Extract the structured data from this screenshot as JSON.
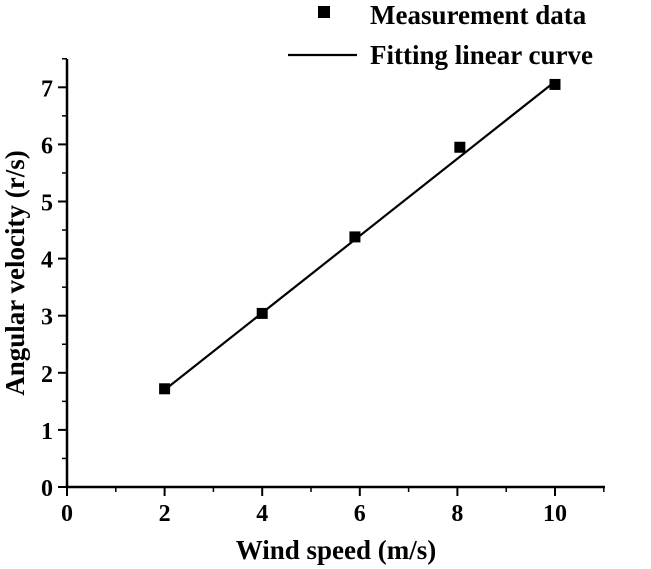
{
  "chart_data": {
    "type": "scatter",
    "title": "",
    "xlabel": "Wind speed (m/s)",
    "ylabel": "Angular velocity (r/s)",
    "xlim": [
      0,
      11
    ],
    "ylim": [
      0,
      7.5
    ],
    "xticks": [
      0,
      2,
      4,
      6,
      8,
      10
    ],
    "yticks": [
      0,
      1,
      2,
      3,
      4,
      5,
      6,
      7
    ],
    "grid": false,
    "legend_position": "top-right",
    "series": [
      {
        "name": "Measurement data",
        "kind": "scatter",
        "marker": "square",
        "x": [
          2,
          4,
          5.9,
          8.05,
          10
        ],
        "y": [
          1.72,
          3.04,
          4.38,
          5.95,
          7.05
        ]
      },
      {
        "name": "Fitting linear curve",
        "kind": "line",
        "x": [
          2,
          10
        ],
        "y": [
          1.7,
          7.1
        ]
      }
    ]
  },
  "colors": {
    "axis": "#000000",
    "marker": "#000000",
    "line": "#000000"
  }
}
